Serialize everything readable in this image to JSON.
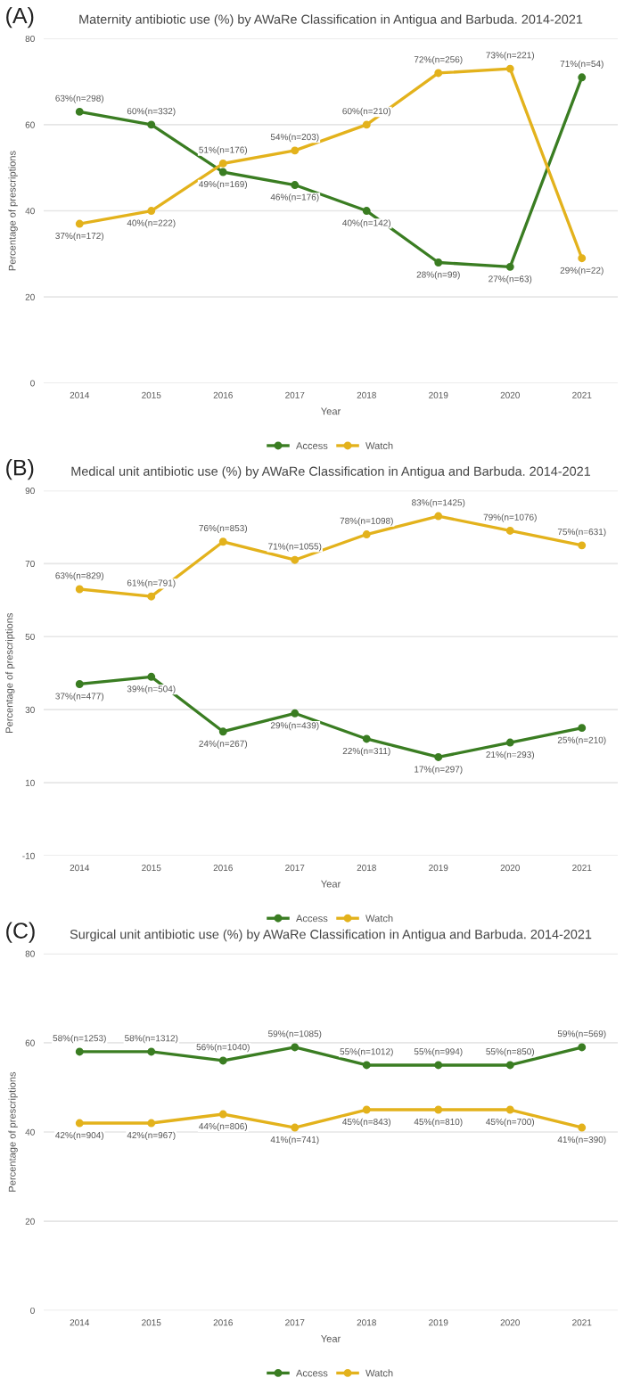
{
  "chart_data": [
    {
      "type": "line",
      "title": "Maternity antibiotic use (%) by AWaRe Classification in Antigua and Barbuda. 2014-2021",
      "xlabel": "Year",
      "ylabel": "Percentage of prescriptions",
      "annotations": [
        "(A)"
      ],
      "categories": [
        "2014",
        "2015",
        "2016",
        "2017",
        "2018",
        "2019",
        "2020",
        "2021"
      ],
      "series": [
        {
          "name": "Access",
          "color": "#3a7d22",
          "values": [
            63,
            60,
            49,
            46,
            40,
            28,
            27,
            71
          ],
          "value_labels": [
            "63%(n=298)",
            "60%(n=332)",
            "49%(n=169)",
            "46%(n=176)",
            "40%(n=142)",
            "28%(n=99)",
            "27%(n=63)",
            "71%(n=54)"
          ]
        },
        {
          "name": "Watch",
          "color": "#e3b21c",
          "values": [
            37,
            40,
            51,
            54,
            60,
            72,
            73,
            29
          ],
          "value_labels": [
            "37%(n=172)",
            "40%(n=222)",
            "51%(n=176)",
            "54%(n=203)",
            "60%(n=210)",
            "72%(n=256)",
            "73%(n=221)",
            "29%(n=22)"
          ]
        }
      ],
      "ylim": [
        0,
        80
      ],
      "yticks": [
        0,
        20,
        40,
        60,
        80
      ],
      "grid": "y",
      "legend": "bottom",
      "marker": "circle",
      "line_style": "solid"
    },
    {
      "type": "line",
      "title": "Medical unit antibiotic use (%) by AWaRe Classification in Antigua and Barbuda. 2014-2021",
      "xlabel": "Year",
      "ylabel": "Percentage of prescriptions",
      "annotations": [
        "(B)"
      ],
      "categories": [
        "2014",
        "2015",
        "2016",
        "2017",
        "2018",
        "2019",
        "2020",
        "2021"
      ],
      "series": [
        {
          "name": "Access",
          "color": "#3a7d22",
          "values": [
            37,
            39,
            24,
            29,
            22,
            17,
            21,
            25
          ],
          "value_labels": [
            "37%(n=477)",
            "39%(n=504)",
            "24%(n=267)",
            "29%(n=439)",
            "22%(n=311)",
            "17%(n=297)",
            "21%(n=293)",
            "25%(n=210)"
          ]
        },
        {
          "name": "Watch",
          "color": "#e3b21c",
          "values": [
            63,
            61,
            76,
            71,
            78,
            83,
            79,
            75
          ],
          "value_labels": [
            "63%(n=829)",
            "61%(n=791)",
            "76%(n=853)",
            "71%(n=1055)",
            "78%(n=1098)",
            "83%(n=1425)",
            "79%(n=1076)",
            "75%(n=631)"
          ]
        }
      ],
      "ylim": [
        -10,
        90
      ],
      "yticks": [
        -10,
        10,
        30,
        50,
        70,
        90
      ],
      "grid": "y",
      "legend": "bottom",
      "marker": "circle",
      "line_style": "solid"
    },
    {
      "type": "line",
      "title": "Surgical unit antibiotic use (%) by AWaRe Classification in Antigua and Barbuda. 2014-2021",
      "xlabel": "Year",
      "ylabel": "Percentage of prescriptions",
      "annotations": [
        "(C)"
      ],
      "categories": [
        "2014",
        "2015",
        "2016",
        "2017",
        "2018",
        "2019",
        "2020",
        "2021"
      ],
      "series": [
        {
          "name": "Access",
          "color": "#3a7d22",
          "values": [
            58,
            58,
            56,
            59,
            55,
            55,
            55,
            59
          ],
          "value_labels": [
            "58%(n=1253)",
            "58%(n=1312)",
            "56%(n=1040)",
            "59%(n=1085)",
            "55%(n=1012)",
            "55%(n=994)",
            "55%(n=850)",
            "59%(n=569)"
          ]
        },
        {
          "name": "Watch",
          "color": "#e3b21c",
          "values": [
            42,
            42,
            44,
            41,
            45,
            45,
            45,
            41
          ],
          "value_labels": [
            "42%(n=904)",
            "42%(n=967)",
            "44%(n=806)",
            "41%(n=741)",
            "45%(n=843)",
            "45%(n=810)",
            "45%(n=700)",
            "41%(n=390)"
          ]
        }
      ],
      "ylim": [
        0,
        80
      ],
      "yticks": [
        0,
        20,
        40,
        60,
        80
      ],
      "grid": "y",
      "legend": "bottom",
      "marker": "circle",
      "line_style": "solid"
    }
  ]
}
